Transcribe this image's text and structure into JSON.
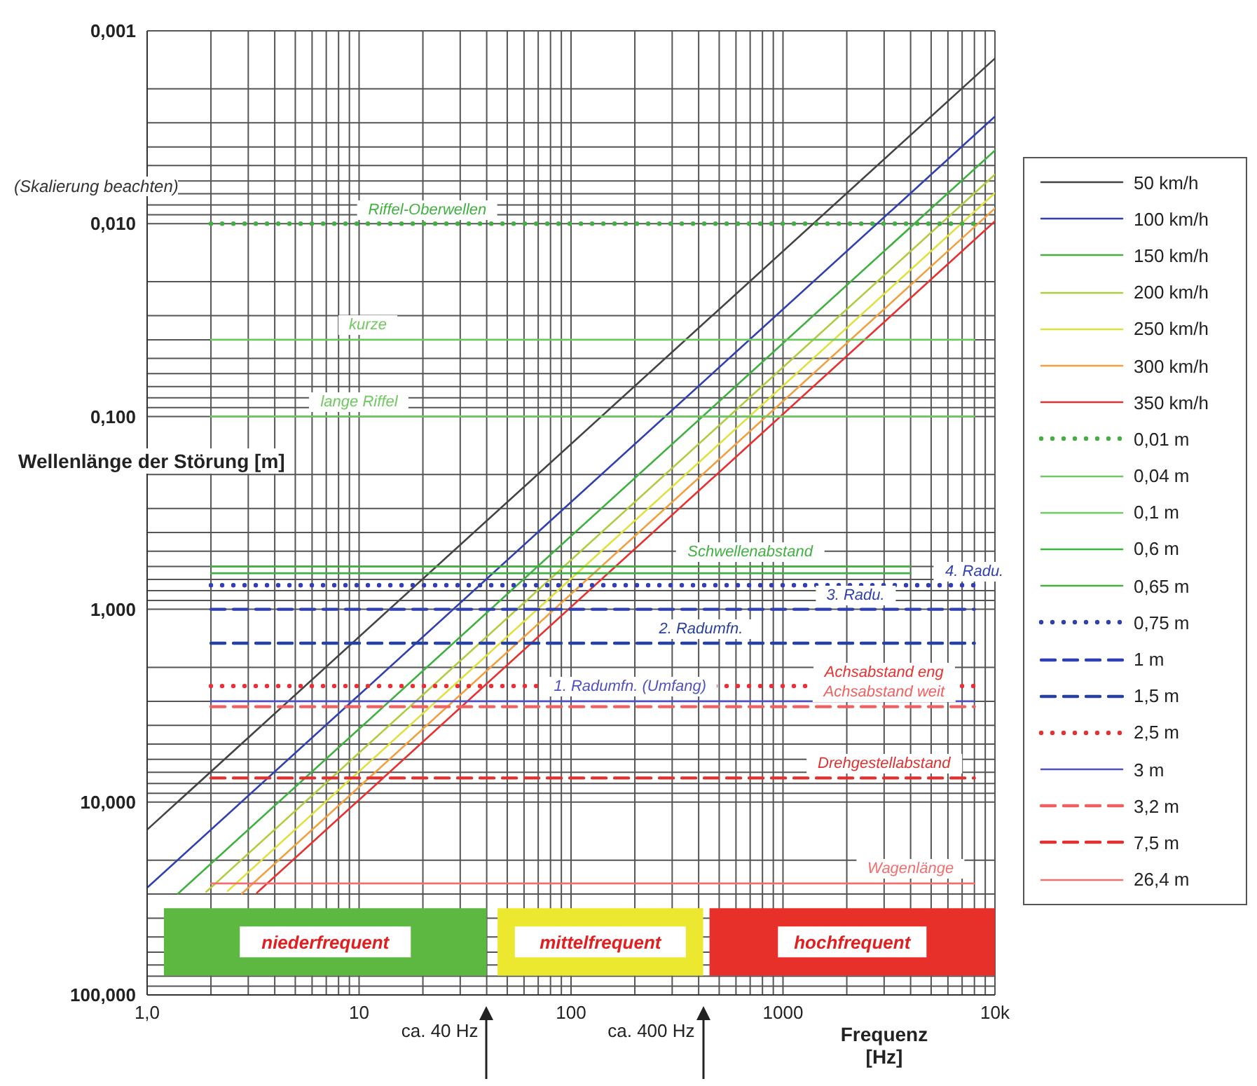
{
  "chart_data": {
    "type": "line",
    "xlabel": "Frequenz [Hz]",
    "ylabel": "Wellenlänge der Störung [m]",
    "log": "xy",
    "grid": true,
    "legend": "right",
    "marker": "none",
    "xlim": [
      1,
      10000
    ],
    "ylim": [
      100,
      0.001
    ],
    "xticks": [
      {
        "value": 1,
        "label": "1,0"
      },
      {
        "value": 2,
        "label": null
      },
      {
        "value": 3,
        "label": null
      },
      {
        "value": 4,
        "label": null
      },
      {
        "value": 5,
        "label": null
      },
      {
        "value": 6,
        "label": null
      },
      {
        "value": 7,
        "label": null
      },
      {
        "value": 8,
        "label": null
      },
      {
        "value": 9,
        "label": null
      },
      10,
      {
        "value": 20,
        "label": null
      },
      {
        "value": 30,
        "label": null
      },
      {
        "value": 40,
        "label": null
      },
      {
        "value": 50,
        "label": null
      },
      {
        "value": 60,
        "label": null
      },
      {
        "value": 70,
        "label": null
      },
      {
        "value": 80,
        "label": null
      },
      {
        "value": 90,
        "label": null
      },
      100,
      {
        "value": 200,
        "label": null
      },
      {
        "value": 300,
        "label": null
      },
      {
        "value": 400,
        "label": null
      },
      {
        "value": 500,
        "label": null
      },
      {
        "value": 600,
        "label": null
      },
      {
        "value": 700,
        "label": null
      },
      {
        "value": 800,
        "label": null
      },
      {
        "value": 900,
        "label": null
      },
      1000,
      {
        "value": 2000,
        "label": null
      },
      {
        "value": 3000,
        "label": null
      },
      {
        "value": 4000,
        "label": null
      },
      {
        "value": 5000,
        "label": null
      },
      {
        "value": 6000,
        "label": null
      },
      {
        "value": 7000,
        "label": null
      },
      {
        "value": 8000,
        "label": null
      },
      {
        "value": 9000,
        "label": null
      },
      {
        "value": 10000,
        "label": "10k"
      }
    ],
    "yticks": [
      {
        "value": 0.001,
        "label": "0,001"
      },
      {
        "value": 0.002,
        "label": null
      },
      {
        "value": 0.003,
        "label": null
      },
      {
        "value": 0.004,
        "label": null
      },
      {
        "value": 0.005,
        "label": null
      },
      {
        "value": 0.006,
        "label": null
      },
      {
        "value": 0.007,
        "label": null
      },
      {
        "value": 0.008,
        "label": null
      },
      {
        "value": 0.009,
        "label": null
      },
      {
        "value": 0.01,
        "label": "0,010"
      },
      {
        "value": 0.02,
        "label": null
      },
      {
        "value": 0.03,
        "label": null
      },
      {
        "value": 0.04,
        "label": null
      },
      {
        "value": 0.05,
        "label": null
      },
      {
        "value": 0.06,
        "label": null
      },
      {
        "value": 0.07,
        "label": null
      },
      {
        "value": 0.08,
        "label": null
      },
      {
        "value": 0.09,
        "label": null
      },
      {
        "value": 0.1,
        "label": "0,100"
      },
      {
        "value": 0.2,
        "label": null
      },
      {
        "value": 0.3,
        "label": null
      },
      {
        "value": 0.4,
        "label": null
      },
      {
        "value": 0.5,
        "label": null
      },
      {
        "value": 0.6,
        "label": null
      },
      {
        "value": 0.7,
        "label": null
      },
      {
        "value": 0.8,
        "label": null
      },
      {
        "value": 0.9,
        "label": null
      },
      {
        "value": 1,
        "label": "1,000"
      },
      {
        "value": 2,
        "label": null
      },
      {
        "value": 3,
        "label": null
      },
      {
        "value": 4,
        "label": null
      },
      {
        "value": 5,
        "label": null
      },
      {
        "value": 6,
        "label": null
      },
      {
        "value": 7,
        "label": null
      },
      {
        "value": 8,
        "label": null
      },
      {
        "value": 9,
        "label": null
      },
      {
        "value": 10,
        "label": "10,000"
      },
      {
        "value": 20,
        "label": null
      },
      {
        "value": 30,
        "label": null
      },
      {
        "value": 40,
        "label": null
      },
      {
        "value": 50,
        "label": null
      },
      {
        "value": 60,
        "label": null
      },
      {
        "value": 70,
        "label": null
      },
      {
        "value": 80,
        "label": null
      },
      {
        "value": 90,
        "label": null
      },
      {
        "value": 100,
        "label": "100,000"
      }
    ],
    "series": [
      {
        "name": "50 km/h",
        "color": "#444444",
        "x": [
          1,
          10000
        ],
        "values": [
          13.9,
          0.00139
        ]
      },
      {
        "name": "100 km/h",
        "color": "#3040b0",
        "x": [
          1,
          10000
        ],
        "values": [
          27.8,
          0.00278
        ]
      },
      {
        "name": "150 km/h",
        "color": "#40b040",
        "x": [
          1.4,
          10000
        ],
        "values": [
          29.8,
          0.00417
        ]
      },
      {
        "name": "200 km/h",
        "color": "#b0cc40",
        "x": [
          1.9,
          10000
        ],
        "values": [
          29.2,
          0.00556
        ]
      },
      {
        "name": "250 km/h",
        "color": "#e0e040",
        "x": [
          2.4,
          10000
        ],
        "values": [
          28.9,
          0.00694
        ]
      },
      {
        "name": "300 km/h",
        "color": "#f0a040",
        "x": [
          2.8,
          10000
        ],
        "values": [
          29.8,
          0.00833
        ]
      },
      {
        "name": "350 km/h",
        "color": "#e83030",
        "x": [
          3.3,
          10000
        ],
        "values": [
          29.5,
          0.00972
        ]
      },
      {
        "name": "0,01 m",
        "color": "#40b040",
        "line_style": "dotted",
        "x": [
          2,
          8000
        ],
        "values": [
          0.01,
          0.01
        ]
      },
      {
        "name": "0,04 m",
        "color": "#70c860",
        "x": [
          2,
          8000
        ],
        "values": [
          0.04,
          0.04
        ]
      },
      {
        "name": "0,1 m",
        "color": "#70c860",
        "x": [
          2,
          8000
        ],
        "values": [
          0.1,
          0.1
        ]
      },
      {
        "name": "0,6 m",
        "color": "#40b040",
        "x": [
          2,
          4000
        ],
        "values": [
          0.6,
          0.6
        ]
      },
      {
        "name": "0,65 m",
        "color": "#40b040",
        "x": [
          2,
          4000
        ],
        "values": [
          0.65,
          0.65
        ]
      },
      {
        "name": "0,75 m",
        "color": "#3040b0",
        "line_style": "dotted",
        "x": [
          2,
          8000
        ],
        "values": [
          0.75,
          0.75
        ]
      },
      {
        "name": "1 m",
        "color": "#3040b0",
        "line_style": "dashed",
        "x": [
          2,
          8000
        ],
        "values": [
          1,
          1
        ]
      },
      {
        "name": "1,5 m",
        "color": "#2840a0",
        "line_style": "dashed",
        "x": [
          2,
          8000
        ],
        "values": [
          1.5,
          1.5
        ]
      },
      {
        "name": "2,5 m",
        "color": "#e83030",
        "line_style": "dotted",
        "x": [
          2,
          8000
        ],
        "values": [
          2.5,
          2.5
        ]
      },
      {
        "name": "3 m",
        "color": "#5050c0",
        "x": [
          2,
          8000
        ],
        "values": [
          3,
          3
        ]
      },
      {
        "name": "3,2 m",
        "color": "#f06060",
        "line_style": "dashed",
        "x": [
          2,
          8000
        ],
        "values": [
          3.2,
          3.2
        ]
      },
      {
        "name": "7,5 m",
        "color": "#e03030",
        "line_style": "dashed",
        "x": [
          2,
          8000
        ],
        "values": [
          7.5,
          7.5
        ]
      },
      {
        "name": "26,4 m",
        "color": "#f07070",
        "x": [
          2,
          8000
        ],
        "values": [
          26.4,
          26.4
        ]
      }
    ],
    "bands": [
      {
        "axis": "x",
        "from": 1.2,
        "to": 40,
        "label": "niederfrequent",
        "color": "#5cb840"
      },
      {
        "axis": "x",
        "from": 45,
        "to": 420,
        "label": "mittelfrequent",
        "color": "#ece830"
      },
      {
        "axis": "x",
        "from": 450,
        "to": 10000,
        "label": "hochfrequent",
        "color": "#e8302a"
      }
    ],
    "annotations": [
      "(Skalierung beachten)",
      {
        "text": "Riffel-Oberwellen",
        "x": 21,
        "y": 0.01
      },
      {
        "text": "kurze",
        "x": 11,
        "y": 0.04
      },
      {
        "text": "lange Riffel",
        "x": 10,
        "y": 0.1
      },
      {
        "text": "Schwellenabstand",
        "x": 700,
        "y": 0.6
      },
      {
        "text": "4. Radu.",
        "x": 8000,
        "y": 0.75
      },
      {
        "text": "3. Radu.",
        "x": 2200,
        "y": 1
      },
      {
        "text": "2. Radumfn.",
        "x": 410,
        "y": 1.5
      },
      {
        "text": "Achsabstand eng",
        "x": 3000,
        "y": 2.5
      },
      {
        "text": "1. Radumfn. (Umfang)",
        "x": 190,
        "y": 3
      },
      {
        "text": "Achsabstand weit",
        "x": 3000,
        "y": 3.2
      },
      {
        "text": "Drehgestellabstand",
        "x": 3000,
        "y": 7.5
      },
      {
        "text": "Wagenlänge",
        "x": 4000,
        "y": 26.4
      },
      "ca. 40 Hz",
      "ca. 400 Hz"
    ]
  }
}
